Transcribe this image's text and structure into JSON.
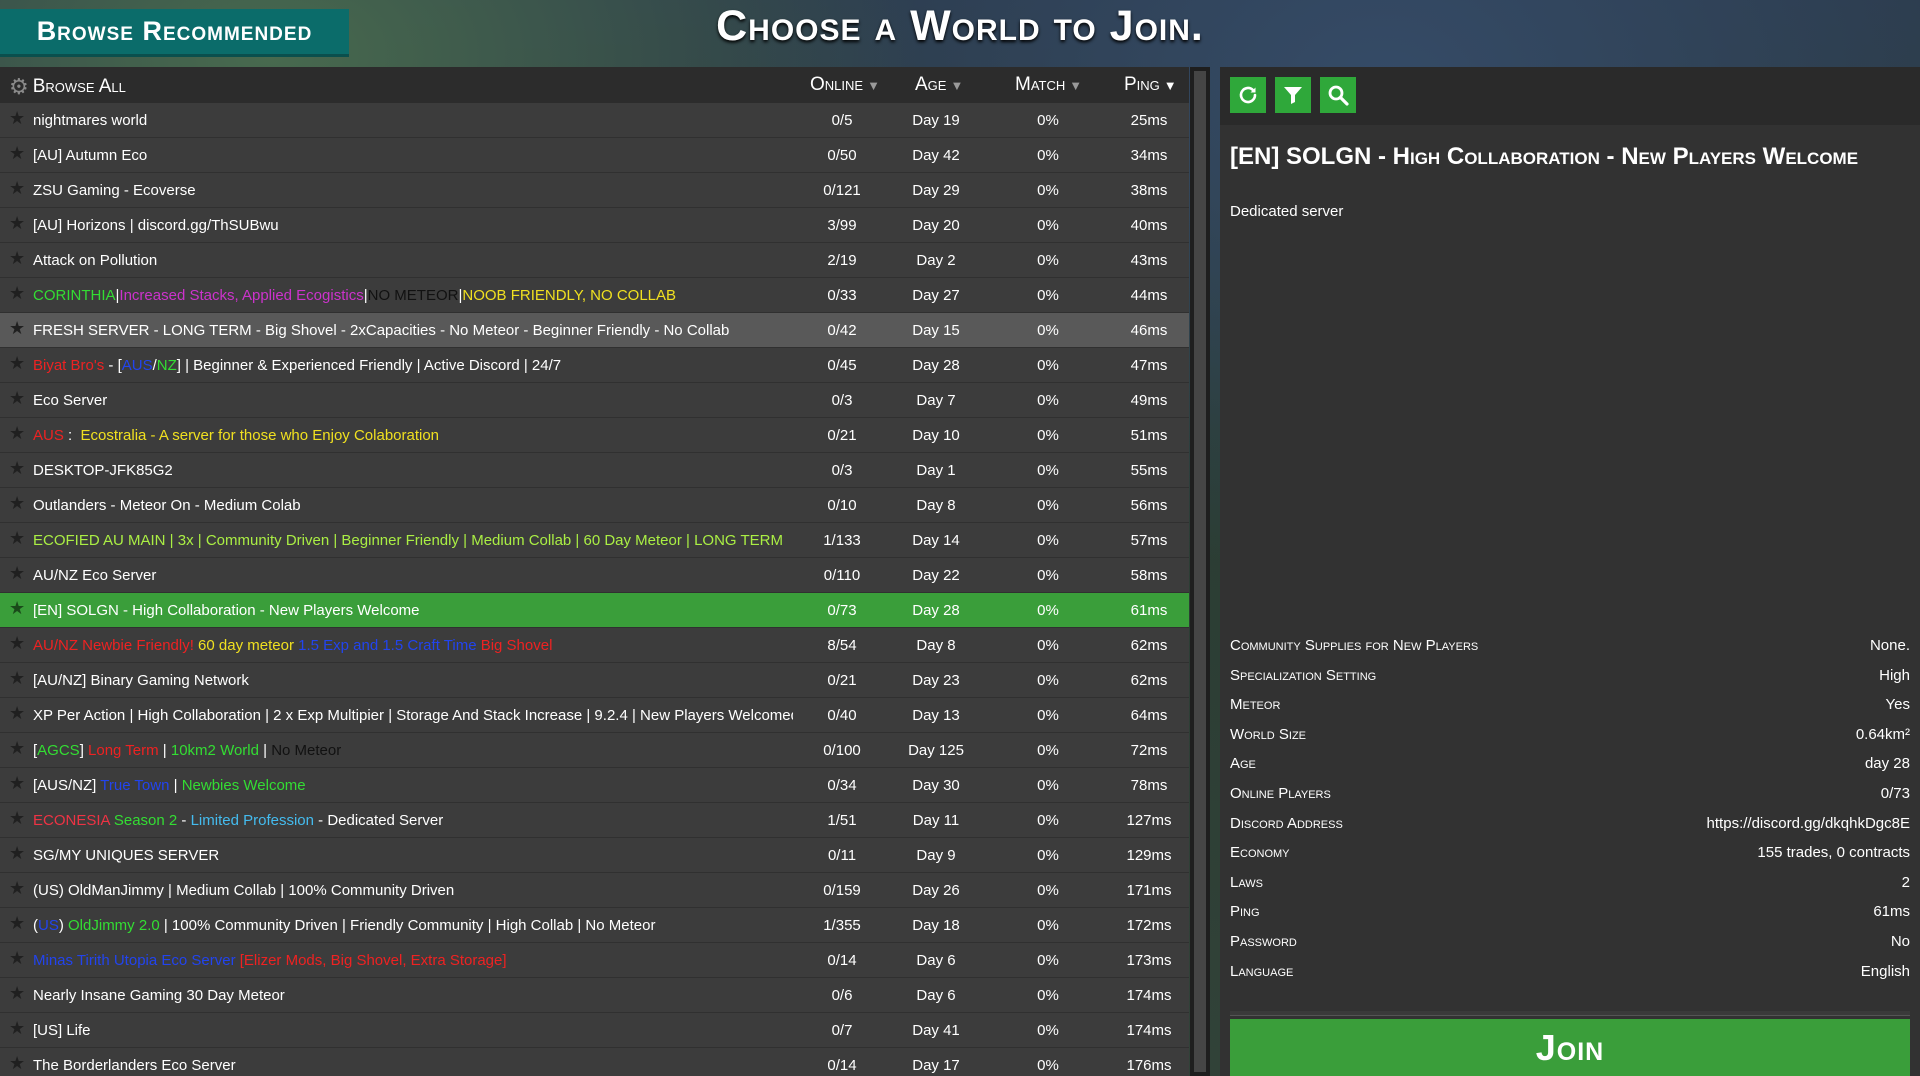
{
  "header": {
    "browse_recommended": "Browse Recommended",
    "title": "Choose a World to Join."
  },
  "list": {
    "browse_all": "Browse All",
    "columns": {
      "online": "Online",
      "age": "Age",
      "match": "Match",
      "ping": "Ping"
    },
    "rows": [
      {
        "name": [
          {
            "t": "nightmares world",
            "c": "#ffffff"
          }
        ],
        "online": "0/5",
        "age": "Day 19",
        "match": "0%",
        "ping": "25ms"
      },
      {
        "name": [
          {
            "t": "[AU] Autumn Eco",
            "c": "#ffffff"
          }
        ],
        "online": "0/50",
        "age": "Day 42",
        "match": "0%",
        "ping": "34ms"
      },
      {
        "name": [
          {
            "t": "ZSU Gaming - Ecoverse",
            "c": "#ffffff"
          }
        ],
        "online": "0/121",
        "age": "Day 29",
        "match": "0%",
        "ping": "38ms"
      },
      {
        "name": [
          {
            "t": "[AU] Horizons | discord.gg/ThSUBwu",
            "c": "#ffffff"
          }
        ],
        "online": "3/99",
        "age": "Day 20",
        "match": "0%",
        "ping": "40ms"
      },
      {
        "name": [
          {
            "t": "Attack on Pollution",
            "c": "#ffffff"
          }
        ],
        "online": "2/19",
        "age": "Day 2",
        "match": "0%",
        "ping": "43ms"
      },
      {
        "name": [
          {
            "t": "CORINTHIA",
            "c": "#33dd33"
          },
          {
            "t": "|",
            "c": "#ffffff"
          },
          {
            "t": "Increased Stacks, Applied Ecogistics",
            "c": "#cc33cc"
          },
          {
            "t": "|",
            "c": "#ffffff"
          },
          {
            "t": "NO METEOR",
            "c": "#111111"
          },
          {
            "t": "|",
            "c": "#ffffff"
          },
          {
            "t": "NOOB FRIENDLY, NO COLLAB",
            "c": "#f0e020"
          }
        ],
        "online": "0/33",
        "age": "Day 27",
        "match": "0%",
        "ping": "44ms"
      },
      {
        "name": [
          {
            "t": "FRESH SERVER - LONG TERM - Big Shovel - 2xCapacities - No Meteor - Beginner Friendly - No Collab",
            "c": "#ffffff"
          }
        ],
        "online": "0/42",
        "age": "Day 15",
        "match": "0%",
        "ping": "46ms",
        "state": "hl"
      },
      {
        "name": [
          {
            "t": "Biyat Bro's",
            "c": "#ee2222"
          },
          {
            "t": " - [",
            "c": "#ffffff"
          },
          {
            "t": "AUS",
            "c": "#2244ee"
          },
          {
            "t": "/",
            "c": "#ffffff"
          },
          {
            "t": "NZ",
            "c": "#33dd33"
          },
          {
            "t": "] | Beginner & Experienced Friendly | Active Discord | 24/7",
            "c": "#ffffff"
          }
        ],
        "online": "0/45",
        "age": "Day 28",
        "match": "0%",
        "ping": "47ms"
      },
      {
        "name": [
          {
            "t": "Eco Server",
            "c": "#ffffff"
          }
        ],
        "online": "0/3",
        "age": "Day 7",
        "match": "0%",
        "ping": "49ms"
      },
      {
        "name": [
          {
            "t": "AUS",
            "c": "#ee2222"
          },
          {
            "t": " :  ",
            "c": "#ffffff"
          },
          {
            "t": "Ecostralia - A server for those who Enjoy Colaboration",
            "c": "#f0e020"
          }
        ],
        "online": "0/21",
        "age": "Day 10",
        "match": "0%",
        "ping": "51ms"
      },
      {
        "name": [
          {
            "t": "DESKTOP-JFK85G2",
            "c": "#ffffff"
          }
        ],
        "online": "0/3",
        "age": "Day 1",
        "match": "0%",
        "ping": "55ms"
      },
      {
        "name": [
          {
            "t": "Outlanders - Meteor On - Medium Colab",
            "c": "#ffffff"
          }
        ],
        "online": "0/10",
        "age": "Day 8",
        "match": "0%",
        "ping": "56ms"
      },
      {
        "name": [
          {
            "t": "ECOFIED AU MAIN | 3x | Community Driven | Beginner Friendly | Medium Collab | 60 Day Meteor | LONG TERM",
            "c": "#aaee44"
          }
        ],
        "online": "1/133",
        "age": "Day 14",
        "match": "0%",
        "ping": "57ms"
      },
      {
        "name": [
          {
            "t": "AU/NZ Eco Server",
            "c": "#ffffff"
          }
        ],
        "online": "0/110",
        "age": "Day 22",
        "match": "0%",
        "ping": "58ms"
      },
      {
        "name": [
          {
            "t": "[EN] SOLGN - High Collaboration - New Players Welcome",
            "c": "#ffffff"
          }
        ],
        "online": "0/73",
        "age": "Day 28",
        "match": "0%",
        "ping": "61ms",
        "state": "sel"
      },
      {
        "name": [
          {
            "t": "AU/NZ Newbie Friendly! ",
            "c": "#ee2222"
          },
          {
            "t": "60 day meteor ",
            "c": "#f0e020"
          },
          {
            "t": "1.5 Exp and 1.5 Craft Time ",
            "c": "#2244ee"
          },
          {
            "t": "Big Shovel",
            "c": "#ee2222"
          }
        ],
        "online": "8/54",
        "age": "Day 8",
        "match": "0%",
        "ping": "62ms"
      },
      {
        "name": [
          {
            "t": "[AU/NZ] Binary Gaming Network",
            "c": "#ffffff"
          }
        ],
        "online": "0/21",
        "age": "Day 23",
        "match": "0%",
        "ping": "62ms"
      },
      {
        "name": [
          {
            "t": "XP Per Action | High Collaboration | 2 x Exp Multipier | Storage And Stack Increase | 9.2.4 | New Players Welcomed |",
            "c": "#ffffff"
          }
        ],
        "online": "0/40",
        "age": "Day 13",
        "match": "0%",
        "ping": "64ms"
      },
      {
        "name": [
          {
            "t": "[",
            "c": "#ffffff"
          },
          {
            "t": "AGCS",
            "c": "#33dd33"
          },
          {
            "t": "] ",
            "c": "#ffffff"
          },
          {
            "t": "Long Term",
            "c": "#ee2222"
          },
          {
            "t": " | ",
            "c": "#ffffff"
          },
          {
            "t": "10km2 World",
            "c": "#33dd33"
          },
          {
            "t": " | ",
            "c": "#ffffff"
          },
          {
            "t": "No Meteor",
            "c": "#111111"
          }
        ],
        "online": "0/100",
        "age": "Day 125",
        "match": "0%",
        "ping": "72ms"
      },
      {
        "name": [
          {
            "t": "[AUS/NZ] ",
            "c": "#ffffff"
          },
          {
            "t": "True Town",
            "c": "#2244ee"
          },
          {
            "t": " | ",
            "c": "#ffffff"
          },
          {
            "t": "Newbies Welcome",
            "c": "#33dd33"
          }
        ],
        "online": "0/34",
        "age": "Day 30",
        "match": "0%",
        "ping": "78ms"
      },
      {
        "name": [
          {
            "t": "ECONESIA ",
            "c": "#ee3344"
          },
          {
            "t": "Season 2",
            "c": "#33dd33"
          },
          {
            "t": " - ",
            "c": "#ffffff"
          },
          {
            "t": "Limited Profession",
            "c": "#44bbee"
          },
          {
            "t": " - Dedicated Server",
            "c": "#ffffff"
          }
        ],
        "online": "1/51",
        "age": "Day 11",
        "match": "0%",
        "ping": "127ms"
      },
      {
        "name": [
          {
            "t": "SG/MY UNIQUES SERVER",
            "c": "#ffffff"
          }
        ],
        "online": "0/11",
        "age": "Day 9",
        "match": "0%",
        "ping": "129ms"
      },
      {
        "name": [
          {
            "t": "(US) OldManJimmy | Medium Collab | 100% Community Driven",
            "c": "#ffffff"
          }
        ],
        "online": "0/159",
        "age": "Day 26",
        "match": "0%",
        "ping": "171ms"
      },
      {
        "name": [
          {
            "t": "(",
            "c": "#ffffff"
          },
          {
            "t": "US",
            "c": "#2244ee"
          },
          {
            "t": ") ",
            "c": "#ffffff"
          },
          {
            "t": "OldJimmy 2.0",
            "c": "#33dd33"
          },
          {
            "t": " | 100% Community Driven | Friendly Community | High Collab | No Meteor",
            "c": "#ffffff"
          }
        ],
        "online": "1/355",
        "age": "Day 18",
        "match": "0%",
        "ping": "172ms"
      },
      {
        "name": [
          {
            "t": "Minas Tirith Utopia Eco Server ",
            "c": "#2244ee"
          },
          {
            "t": "[Elizer Mods, Big Shovel, Extra Storage]",
            "c": "#ee2222"
          }
        ],
        "online": "0/14",
        "age": "Day 6",
        "match": "0%",
        "ping": "173ms"
      },
      {
        "name": [
          {
            "t": "Nearly Insane Gaming 30 Day Meteor",
            "c": "#ffffff"
          }
        ],
        "online": "0/6",
        "age": "Day 6",
        "match": "0%",
        "ping": "174ms"
      },
      {
        "name": [
          {
            "t": "[US] Life",
            "c": "#ffffff"
          }
        ],
        "online": "0/7",
        "age": "Day 41",
        "match": "0%",
        "ping": "174ms"
      },
      {
        "name": [
          {
            "t": "The Borderlanders Eco Server",
            "c": "#ffffff"
          }
        ],
        "online": "0/14",
        "age": "Day 17",
        "match": "0%",
        "ping": "176ms"
      }
    ]
  },
  "detail": {
    "title": "[EN] SOLGN - High Collaboration - New Players Welcome",
    "subtitle": "Dedicated server",
    "props": [
      {
        "k": "Community Supplies for New Players",
        "v": "None."
      },
      {
        "k": "Specialization Setting",
        "v": "High"
      },
      {
        "k": "Meteor",
        "v": "Yes"
      },
      {
        "k": "World Size",
        "v": "0.64km²"
      },
      {
        "k": "Age",
        "v": "day 28"
      },
      {
        "k": "Online Players",
        "v": "0/73"
      },
      {
        "k": "Discord Address",
        "v": "https://discord.gg/dkqhkDgc8E"
      },
      {
        "k": "Economy",
        "v": "155 trades, 0 contracts"
      },
      {
        "k": "Laws",
        "v": "2"
      },
      {
        "k": "Ping",
        "v": "61ms"
      },
      {
        "k": "Password",
        "v": "No"
      },
      {
        "k": "Language",
        "v": "English"
      }
    ],
    "join_label": "Join"
  },
  "toolbar": {
    "icons": [
      "refresh-icon",
      "filter-icon",
      "search-icon"
    ]
  },
  "colors": {
    "accent_green": "#3a9e3a",
    "teal": "#0b6c6a",
    "panel": "#303030"
  }
}
